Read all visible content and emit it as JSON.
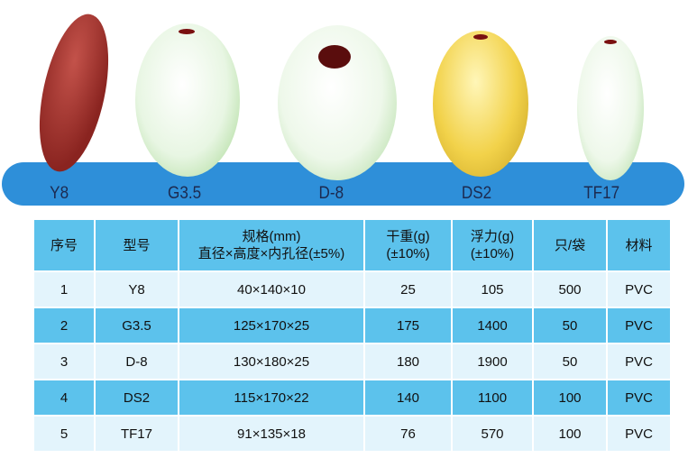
{
  "products": [
    {
      "model": "Y8",
      "color": "#9b2f2a"
    },
    {
      "model": "G3.5",
      "color": "#eef8e8"
    },
    {
      "model": "D-8",
      "color": "#f2faef"
    },
    {
      "model": "DS2",
      "color": "#f2d24a"
    },
    {
      "model": "TF17",
      "color": "#eef8ea"
    }
  ],
  "table": {
    "headers": [
      "序号",
      "型号",
      "规格(mm)",
      "直径×高度×内孔径(±5%)",
      "干重(g)",
      "(±10%)",
      "浮力(g)",
      "(±10%)",
      "只/袋",
      "材料"
    ],
    "rows": [
      [
        "1",
        "Y8",
        "40×140×10",
        "25",
        "105",
        "500",
        "PVC"
      ],
      [
        "2",
        "G3.5",
        "125×170×25",
        "175",
        "1400",
        "50",
        "PVC"
      ],
      [
        "3",
        "D-8",
        "130×180×25",
        "180",
        "1900",
        "50",
        "PVC"
      ],
      [
        "4",
        "DS2",
        "115×170×22",
        "140",
        "1100",
        "100",
        "PVC"
      ],
      [
        "5",
        "TF17",
        "91×135×18",
        "76",
        "570",
        "100",
        "PVC"
      ]
    ]
  }
}
